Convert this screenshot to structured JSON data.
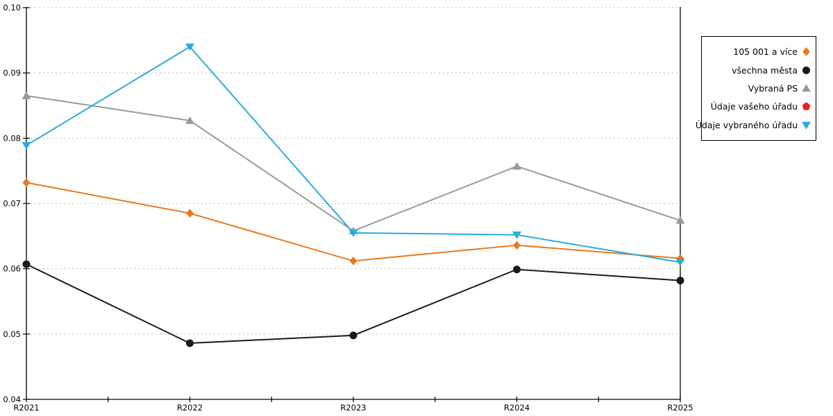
{
  "chart_data": {
    "type": "line",
    "title": "",
    "xlabel": "",
    "ylabel": "",
    "categories": [
      "R2021",
      "R2022",
      "R2023",
      "R2024",
      "R2025"
    ],
    "series": [
      {
        "name": "105 001 a více",
        "color": "#E8791E",
        "marker": "diamond",
        "values": [
          0.0732,
          0.0685,
          0.0612,
          0.0636,
          0.0616
        ]
      },
      {
        "name": "všechna města",
        "color": "#1A1A1A",
        "marker": "circle",
        "values": [
          0.0607,
          0.0486,
          0.0498,
          0.0599,
          0.0582
        ]
      },
      {
        "name": "Vybraná PS",
        "color": "#999999",
        "marker": "triangle-up",
        "values": [
          0.0865,
          0.0827,
          0.0658,
          0.0757,
          0.0674
        ]
      },
      {
        "name": "Údaje vašeho úřadu",
        "color": "#EC1C24",
        "marker": "pentagon",
        "values": []
      },
      {
        "name": "Údaje vybraného úřadu",
        "color": "#29ABE2",
        "marker": "triangle-down",
        "values": [
          0.0789,
          0.094,
          0.0655,
          0.0652,
          0.061
        ]
      }
    ],
    "ylim": [
      0.04,
      0.1
    ],
    "yticks": [
      "0.04",
      "0.05",
      "0.06",
      "0.07",
      "0.08",
      "0.09",
      "0.10"
    ],
    "grid": "horizontal-dashed",
    "grid_color": "#BFBFBF",
    "axis_color": "#000000",
    "legend_position": "right",
    "line_width": 2
  }
}
